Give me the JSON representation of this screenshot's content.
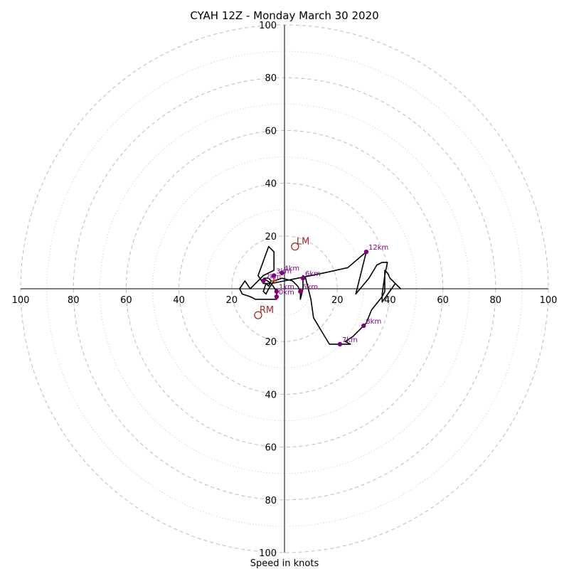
{
  "chart_data": {
    "type": "hodograph",
    "title": "CYAH 12Z - Monday March 30 2020",
    "xlabel": "Speed in knots",
    "ring_labels": [
      "20",
      "40",
      "60",
      "80",
      "100"
    ],
    "axis_range": [
      -100,
      100
    ],
    "ring_step": 20,
    "minor_ring_step": 10,
    "grid": true,
    "colors": {
      "hodograph_line": "#000000",
      "height_marker": "#800080",
      "storm_motion": "#a52a2a",
      "grid": "#bbbbbb",
      "axis": "#000000"
    },
    "hodograph_points": [
      [
        -8,
        4
      ],
      [
        -6,
        4
      ],
      [
        -5,
        3
      ],
      [
        -6,
        1
      ],
      [
        -7,
        2
      ],
      [
        -8,
        -1
      ],
      [
        -7,
        -2
      ],
      [
        -6,
        0
      ],
      [
        -4,
        3
      ],
      [
        -1,
        4
      ],
      [
        3,
        3
      ],
      [
        5,
        1
      ],
      [
        6,
        -1
      ],
      [
        6,
        -4
      ],
      [
        7,
        0
      ],
      [
        7,
        5
      ],
      [
        8,
        4
      ],
      [
        9,
        0
      ],
      [
        10,
        -4
      ],
      [
        11,
        -11
      ],
      [
        17,
        -21
      ],
      [
        23,
        -21
      ],
      [
        25,
        -21
      ],
      [
        23,
        -20
      ],
      [
        26,
        -18
      ],
      [
        31,
        -13
      ],
      [
        33,
        -8
      ],
      [
        37,
        -3
      ],
      [
        38,
        -1
      ],
      [
        38,
        4
      ],
      [
        38,
        7
      ],
      [
        39,
        6
      ],
      [
        40,
        4
      ],
      [
        42,
        2
      ],
      [
        44,
        0
      ],
      [
        42,
        2
      ],
      [
        37,
        -5
      ],
      [
        37,
        -2
      ],
      [
        38,
        5
      ],
      [
        39,
        10
      ],
      [
        37,
        10
      ],
      [
        35,
        9
      ],
      [
        32,
        4
      ],
      [
        27,
        -2
      ],
      [
        31,
        14
      ],
      [
        24,
        8
      ],
      [
        15,
        6
      ],
      [
        5,
        4
      ],
      [
        0,
        3
      ],
      [
        -5,
        2
      ],
      [
        -8,
        2
      ],
      [
        -10,
        5
      ],
      [
        -6,
        16
      ],
      [
        -4,
        14
      ],
      [
        -4,
        7
      ],
      [
        -8,
        5
      ],
      [
        -10,
        3
      ],
      [
        -11,
        2
      ],
      [
        -12,
        1
      ],
      [
        -13,
        0
      ],
      [
        -15,
        3
      ],
      [
        -17,
        0
      ],
      [
        -16,
        -2
      ],
      [
        -13,
        -3
      ],
      [
        -11,
        -4
      ],
      [
        -8,
        -4
      ],
      [
        -5,
        -4
      ],
      [
        -3,
        -4
      ],
      [
        -3,
        -3
      ],
      [
        -3,
        -1
      ],
      [
        -5,
        2
      ],
      [
        -8,
        4
      ]
    ],
    "height_markers": [
      {
        "label": "0km",
        "u": -3,
        "v": -3
      },
      {
        "label": "1km",
        "u": -3,
        "v": -1
      },
      {
        "label": "2km",
        "u": -8,
        "v": 3
      },
      {
        "label": "3km",
        "u": -4,
        "v": 5
      },
      {
        "label": "4km",
        "u": -1,
        "v": 6
      },
      {
        "label": "5km",
        "u": 6,
        "v": -1
      },
      {
        "label": "6km",
        "u": 7,
        "v": 4
      },
      {
        "label": "7km",
        "u": 21,
        "v": -21
      },
      {
        "label": "8km",
        "u": 30,
        "v": -14
      },
      {
        "label": "12km",
        "u": 31,
        "v": 14
      }
    ],
    "storm_motion": [
      {
        "label": "LM",
        "u": 4,
        "v": 16
      },
      {
        "label": "RM",
        "u": -10,
        "v": -10
      }
    ],
    "mean_wind": {
      "u": -4,
      "v": 3
    }
  }
}
